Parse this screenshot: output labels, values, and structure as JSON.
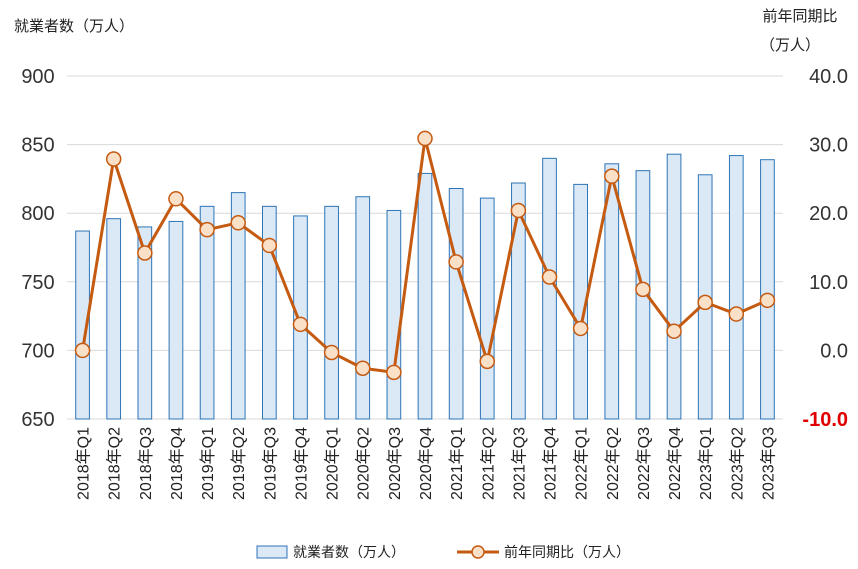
{
  "chart_data": {
    "type": "bar+line",
    "categories": [
      "2018年Q1",
      "2018年Q2",
      "2018年Q3",
      "2018年Q4",
      "2019年Q1",
      "2019年Q2",
      "2019年Q3",
      "2019年Q4",
      "2020年Q1",
      "2020年Q2",
      "2020年Q3",
      "2020年Q4",
      "2021年Q1",
      "2021年Q2",
      "2021年Q3",
      "2021年Q4",
      "2022年Q1",
      "2022年Q2",
      "2022年Q3",
      "2022年Q4",
      "2023年Q1",
      "2023年Q2",
      "2023年Q3"
    ],
    "series": [
      {
        "name": "就業者数（万人）",
        "type": "bar",
        "axis": "left",
        "values": [
          787,
          796,
          790,
          794,
          805,
          815,
          805,
          798,
          805,
          812,
          802,
          829,
          818,
          811,
          822,
          840,
          821,
          836,
          831,
          843,
          828,
          842,
          839
        ]
      },
      {
        "name": "前年同期比（万人）",
        "type": "line",
        "axis": "right",
        "values": [
          0.0,
          27.9,
          14.2,
          22.1,
          17.6,
          18.6,
          15.3,
          3.8,
          -0.3,
          -2.6,
          -3.2,
          30.9,
          12.9,
          -1.6,
          20.4,
          10.7,
          3.2,
          25.4,
          8.9,
          2.8,
          7.0,
          5.3,
          7.3
        ]
      }
    ],
    "y_left": {
      "label": "就業者数（万人）",
      "ticks": [
        "900",
        "850",
        "800",
        "750",
        "700",
        "650"
      ],
      "ylim": [
        650,
        900
      ]
    },
    "y_right": {
      "label_line1": "前年同期比",
      "label_line2": "（万人）",
      "ticks": [
        "40.0",
        "30.0",
        "20.0",
        "10.0",
        "0.0",
        "-10.0"
      ],
      "ylim": [
        -10,
        40
      ]
    },
    "grid": true,
    "legend": "bottom",
    "colors": {
      "bar_fill": "#dbe8f6",
      "bar_stroke": "#2e75b6",
      "line": "#c55a11",
      "marker_fill": "#fbe0c8",
      "negative_tick": "#e00000",
      "grid": "#d9d9d9"
    }
  }
}
